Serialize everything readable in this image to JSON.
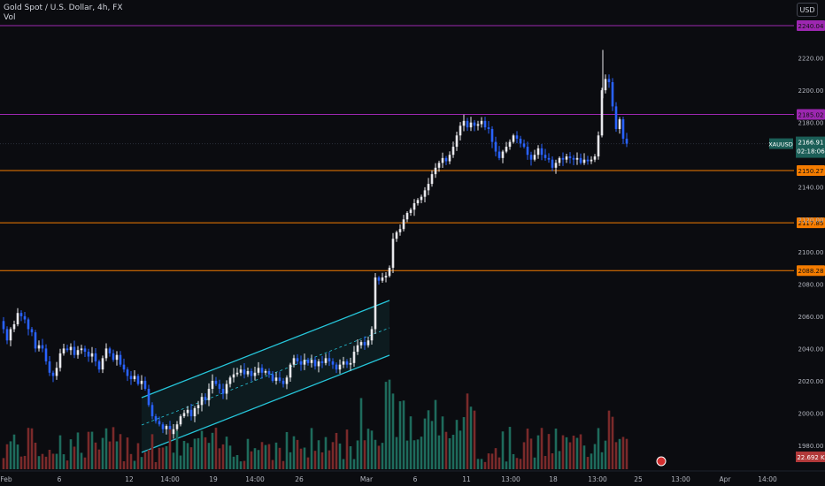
{
  "legend": {
    "title": "Gold Spot / U.S. Dollar, 4h, FX",
    "sub": "Vol"
  },
  "currency_button": "USD",
  "colors": {
    "background": "#0b0c10",
    "up": "#e8e8ec",
    "down": "#2962ff",
    "vol_up": "#1e6b5c",
    "vol_down": "#7a2a2a",
    "channel": "#26c6da",
    "purple_line": "#9c27b0",
    "orange_line": "#f57c00",
    "axis_text": "#b2b5be"
  },
  "price_axis": {
    "ticks": [
      "2220.00",
      "2200.00",
      "2180.00",
      "2140.00",
      "2120.00",
      "2100.00",
      "2080.00",
      "2060.00",
      "2040.00",
      "2020.00",
      "2000.00",
      "1980.00"
    ],
    "tick_values": [
      2220,
      2200,
      2180,
      2140,
      2120,
      2100,
      2080,
      2060,
      2040,
      2020,
      2000,
      1980
    ]
  },
  "time_axis": {
    "labels": [
      "Feb",
      "6",
      "12",
      "14:00",
      "19",
      "14:00",
      "26",
      "Mar",
      "6",
      "11",
      "13:00",
      "18",
      "13:00",
      "25",
      "13:00",
      "Apr",
      "14:00"
    ]
  },
  "horizontal_levels": [
    {
      "label": "2240.04",
      "value": 2240.04,
      "kind": "purple"
    },
    {
      "label": "2185.02",
      "value": 2185.02,
      "kind": "purple"
    },
    {
      "label": "2150.27",
      "value": 2150.27,
      "kind": "orange"
    },
    {
      "label": "2117.85",
      "value": 2117.85,
      "kind": "orange"
    },
    {
      "label": "2088.28",
      "value": 2088.28,
      "kind": "orange"
    }
  ],
  "last_price": {
    "symbol": "XAUUSD",
    "price": "2166.91",
    "countdown": "02:18:06",
    "value": 2166.91
  },
  "volume_label": "22.692 K",
  "chart_data": {
    "type": "candlestick",
    "symbol": "XAUUSD",
    "interval": "4h",
    "ylim": [
      1975,
      2240
    ],
    "close_path": [
      [
        0,
        2057
      ],
      [
        4,
        2052
      ],
      [
        8,
        2045
      ],
      [
        12,
        2052
      ],
      [
        16,
        2055
      ],
      [
        20,
        2062
      ],
      [
        24,
        2060
      ],
      [
        28,
        2058
      ],
      [
        32,
        2052
      ],
      [
        36,
        2050
      ],
      [
        40,
        2040
      ],
      [
        44,
        2042
      ],
      [
        48,
        2040
      ],
      [
        52,
        2032
      ],
      [
        56,
        2025
      ],
      [
        60,
        2023
      ],
      [
        64,
        2028
      ],
      [
        68,
        2037
      ],
      [
        72,
        2040
      ],
      [
        76,
        2039
      ],
      [
        80,
        2041
      ],
      [
        84,
        2036
      ],
      [
        88,
        2039
      ],
      [
        92,
        2040
      ],
      [
        96,
        2038
      ],
      [
        100,
        2035
      ],
      [
        104,
        2037
      ],
      [
        108,
        2032
      ],
      [
        112,
        2027
      ],
      [
        116,
        2034
      ],
      [
        120,
        2040
      ],
      [
        124,
        2037
      ],
      [
        128,
        2033
      ],
      [
        132,
        2036
      ],
      [
        136,
        2030
      ],
      [
        140,
        2027
      ],
      [
        144,
        2023
      ],
      [
        148,
        2021
      ],
      [
        152,
        2023
      ],
      [
        156,
        2018
      ],
      [
        160,
        2020
      ],
      [
        164,
        2015
      ],
      [
        168,
        2005
      ],
      [
        172,
        1998
      ],
      [
        176,
        1995
      ],
      [
        180,
        1993
      ],
      [
        184,
        1990
      ],
      [
        188,
        1992
      ],
      [
        192,
        1987
      ],
      [
        196,
        1990
      ],
      [
        200,
        1993
      ],
      [
        204,
        1998
      ],
      [
        208,
        2000
      ],
      [
        212,
        2002
      ],
      [
        216,
        1998
      ],
      [
        220,
        2003
      ],
      [
        224,
        2005
      ],
      [
        228,
        2010
      ],
      [
        232,
        2008
      ],
      [
        236,
        2015
      ],
      [
        240,
        2020
      ],
      [
        244,
        2018
      ],
      [
        248,
        2015
      ],
      [
        252,
        2012
      ],
      [
        256,
        2018
      ],
      [
        260,
        2022
      ],
      [
        264,
        2024
      ],
      [
        268,
        2025
      ],
      [
        272,
        2027
      ],
      [
        276,
        2024
      ],
      [
        280,
        2026
      ],
      [
        284,
        2023
      ],
      [
        288,
        2025
      ],
      [
        292,
        2028
      ],
      [
        296,
        2025
      ],
      [
        300,
        2026
      ],
      [
        304,
        2024
      ],
      [
        308,
        2020
      ],
      [
        312,
        2022
      ],
      [
        316,
        2020
      ],
      [
        320,
        2018
      ],
      [
        324,
        2022
      ],
      [
        328,
        2030
      ],
      [
        332,
        2034
      ],
      [
        336,
        2032
      ],
      [
        340,
        2030
      ],
      [
        344,
        2033
      ],
      [
        348,
        2031
      ],
      [
        352,
        2033
      ],
      [
        356,
        2029
      ],
      [
        360,
        2032
      ],
      [
        364,
        2031
      ],
      [
        368,
        2034
      ],
      [
        372,
        2032
      ],
      [
        376,
        2030
      ],
      [
        380,
        2027
      ],
      [
        384,
        2030
      ],
      [
        388,
        2032
      ],
      [
        392,
        2030
      ],
      [
        396,
        2031
      ],
      [
        400,
        2038
      ],
      [
        404,
        2042
      ],
      [
        408,
        2044
      ],
      [
        412,
        2042
      ],
      [
        416,
        2045
      ],
      [
        420,
        2052
      ],
      [
        424,
        2084
      ],
      [
        428,
        2082
      ],
      [
        432,
        2084
      ],
      [
        436,
        2085
      ],
      [
        440,
        2090
      ],
      [
        444,
        2108
      ],
      [
        448,
        2112
      ],
      [
        452,
        2114
      ],
      [
        456,
        2120
      ],
      [
        460,
        2124
      ],
      [
        464,
        2126
      ],
      [
        468,
        2130
      ],
      [
        472,
        2132
      ],
      [
        476,
        2134
      ],
      [
        480,
        2138
      ],
      [
        484,
        2142
      ],
      [
        488,
        2148
      ],
      [
        492,
        2152
      ],
      [
        496,
        2155
      ],
      [
        500,
        2158
      ],
      [
        504,
        2156
      ],
      [
        508,
        2160
      ],
      [
        512,
        2165
      ],
      [
        516,
        2172
      ],
      [
        520,
        2178
      ],
      [
        524,
        2181
      ],
      [
        528,
        2177
      ],
      [
        532,
        2180
      ],
      [
        536,
        2178
      ],
      [
        540,
        2179
      ],
      [
        544,
        2181
      ],
      [
        548,
        2177
      ],
      [
        552,
        2176
      ],
      [
        556,
        2168
      ],
      [
        560,
        2162
      ],
      [
        564,
        2158
      ],
      [
        568,
        2162
      ],
      [
        572,
        2165
      ],
      [
        576,
        2168
      ],
      [
        580,
        2172
      ],
      [
        584,
        2170
      ],
      [
        588,
        2167
      ],
      [
        592,
        2165
      ],
      [
        596,
        2160
      ],
      [
        600,
        2157
      ],
      [
        604,
        2160
      ],
      [
        608,
        2164
      ],
      [
        612,
        2160
      ],
      [
        616,
        2158
      ],
      [
        620,
        2157
      ],
      [
        624,
        2152
      ],
      [
        628,
        2155
      ],
      [
        632,
        2158
      ],
      [
        636,
        2157
      ],
      [
        640,
        2159
      ],
      [
        644,
        2158
      ],
      [
        648,
        2157
      ],
      [
        652,
        2158
      ],
      [
        656,
        2155
      ],
      [
        660,
        2157
      ],
      [
        664,
        2156
      ],
      [
        668,
        2157
      ],
      [
        672,
        2159
      ],
      [
        676,
        2172
      ],
      [
        680,
        2200
      ],
      [
        684,
        2207
      ],
      [
        688,
        2205
      ],
      [
        692,
        2190
      ],
      [
        696,
        2176
      ],
      [
        700,
        2182
      ],
      [
        704,
        2170
      ],
      [
        708,
        2166.91
      ]
    ]
  }
}
